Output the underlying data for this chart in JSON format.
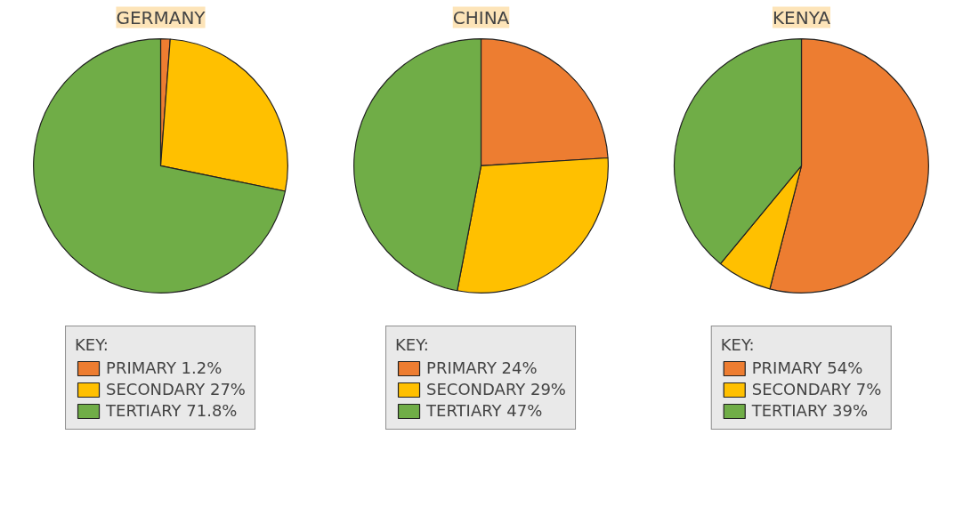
{
  "chart_data": [
    {
      "type": "pie",
      "title": "GERMANY",
      "legend_title": "KEY:",
      "legend": "bottom",
      "categories": [
        "PRIMARY 1.2%",
        "SECONDARY 27%",
        "TERTIARY 71.8%"
      ],
      "values": [
        1.2,
        27,
        71.8
      ],
      "colors": [
        "#ed7d31",
        "#ffc000",
        "#70ad47"
      ]
    },
    {
      "type": "pie",
      "title": "CHINA",
      "legend_title": "KEY:",
      "legend": "bottom",
      "categories": [
        "PRIMARY 24%",
        "SECONDARY 29%",
        "TERTIARY 47%"
      ],
      "values": [
        24,
        29,
        47
      ],
      "colors": [
        "#ed7d31",
        "#ffc000",
        "#70ad47"
      ]
    },
    {
      "type": "pie",
      "title": "KENYA",
      "legend_title": "KEY:",
      "legend": "bottom",
      "categories": [
        "PRIMARY 54%",
        "SECONDARY 7%",
        "TERTIARY 39%"
      ],
      "values": [
        54,
        7,
        39
      ],
      "colors": [
        "#ed7d31",
        "#ffc000",
        "#70ad47"
      ]
    }
  ]
}
